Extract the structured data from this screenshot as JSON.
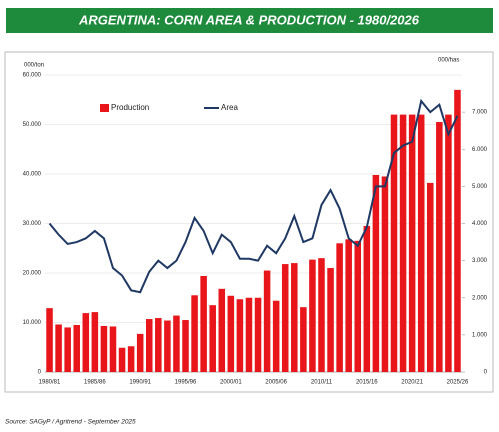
{
  "chart_data": {
    "type": "bar-line",
    "title": "ARGENTINA: CORN AREA & PRODUCTION - 1980/2026",
    "y_label": "000/ton",
    "y2_label": "000/has",
    "source": "Source: SAGyP / Agritrend - September 2025",
    "legend_position": "upper left",
    "grid": true,
    "categories": [
      "1980/81",
      null,
      null,
      null,
      null,
      "1985/86",
      null,
      null,
      null,
      null,
      "1990/91",
      null,
      null,
      null,
      null,
      "1995/96",
      null,
      null,
      null,
      null,
      "2000/01",
      null,
      null,
      null,
      null,
      "2005/06",
      null,
      null,
      null,
      null,
      "2010/11",
      null,
      null,
      null,
      null,
      "2015/16",
      null,
      null,
      null,
      null,
      "2020/21",
      null,
      null,
      null,
      null,
      "2025/26"
    ],
    "series": [
      {
        "name": "Production",
        "type": "bar",
        "color": "#e8161b",
        "axis": "y",
        "values": [
          12900,
          9600,
          9000,
          9500,
          11900,
          12100,
          9300,
          9200,
          4900,
          5200,
          7700,
          10700,
          10900,
          10400,
          11400,
          10500,
          15500,
          19400,
          13500,
          16800,
          15400,
          14700,
          15000,
          15000,
          20500,
          14400,
          21800,
          22000,
          13100,
          22700,
          23000,
          21000,
          26000,
          26800,
          26500,
          29500,
          39800,
          39500,
          52000,
          52000,
          52000,
          52000,
          38200,
          50500,
          52000,
          57000
        ]
      },
      {
        "name": "Area",
        "type": "line",
        "color": "#1f3864",
        "axis": "y2",
        "values": [
          4000,
          3700,
          3450,
          3500,
          3600,
          3800,
          3600,
          2800,
          2600,
          2200,
          2150,
          2700,
          3000,
          2800,
          3000,
          3500,
          4150,
          3800,
          3200,
          3700,
          3500,
          3050,
          3050,
          3000,
          3400,
          3200,
          3600,
          4200,
          3500,
          3600,
          4500,
          4900,
          4400,
          3600,
          3400,
          3900,
          5000,
          5000,
          5900,
          6100,
          6200,
          7300,
          7000,
          7200,
          6400,
          6900
        ]
      }
    ],
    "ylim": [
      0,
      60000
    ],
    "yticks": [
      0,
      {
        "value": 10000,
        "label": "10.000"
      },
      {
        "value": 20000,
        "label": "20.000"
      },
      {
        "value": 30000,
        "label": "30.000"
      },
      {
        "value": 40000,
        "label": "40.000"
      },
      {
        "value": 50000,
        "label": "50.000"
      },
      {
        "value": 60000,
        "label": "60.000"
      }
    ],
    "y2lim": [
      0,
      8000
    ],
    "y2ticks": [
      0,
      {
        "value": 1000,
        "label": "1.000"
      },
      {
        "value": 2000,
        "label": "2.000"
      },
      {
        "value": 3000,
        "label": "3.000"
      },
      {
        "value": 4000,
        "label": "4.000"
      },
      {
        "value": 5000,
        "label": "5.000"
      },
      {
        "value": 6000,
        "label": "6.000"
      },
      {
        "value": 7000,
        "label": "7.000"
      }
    ]
  }
}
